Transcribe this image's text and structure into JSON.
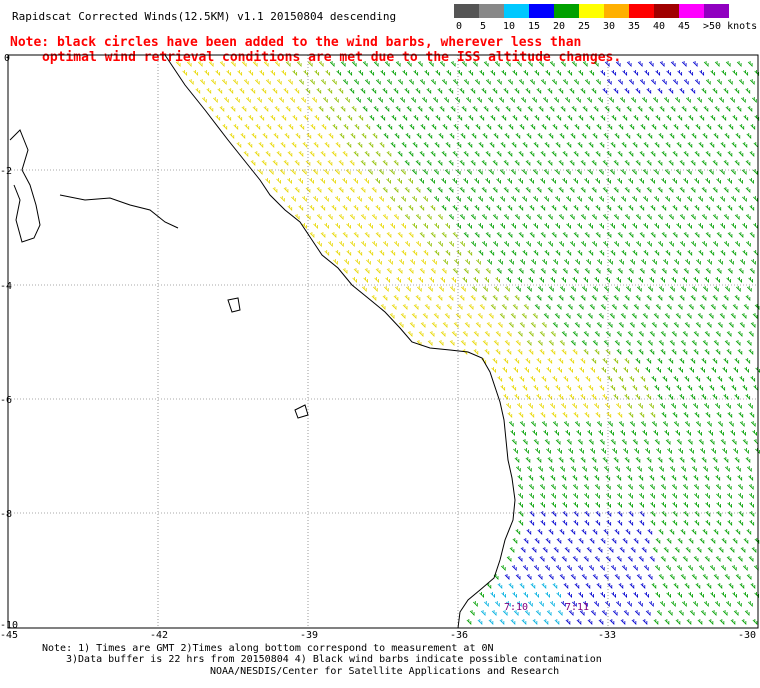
{
  "title": "Rapidscat Corrected Winds(12.5KM) v1.1 20150804 descending",
  "note_line1": "Note: black circles have been added to the wind barbs, wherever less than",
  "note_line2": "optimal wind retrieval conditions are met due to the ISS altitude changes.",
  "legend": {
    "labels": [
      "0",
      "5",
      "10",
      "15",
      "20",
      "25",
      "30",
      "35",
      "40",
      "45",
      ">50 knots"
    ],
    "colors": [
      "#555555",
      "#888888",
      "#00c8ff",
      "#0000ff",
      "#00a000",
      "#ffff00",
      "#ffb000",
      "#ff0000",
      "#a00000",
      "#ff00ff",
      "#9000c0"
    ]
  },
  "axes": {
    "y_labels": [
      "0",
      "-2",
      "-4",
      "-6",
      "-8",
      "-10"
    ],
    "x_labels": [
      "-45",
      "-42",
      "-39",
      "-36",
      "-33",
      "-30"
    ]
  },
  "time_labels": [
    "7:10",
    "7:11"
  ],
  "footer": {
    "line1": "Note: 1) Times are GMT 2)Times along bottom correspond to measurement at 0N",
    "line2": "3)Data buffer is 22 hrs from 20150804 4) Black wind barbs indicate possible contamination",
    "line3": "NOAA/NESDIS/Center for Satellite Applications and Research"
  }
}
